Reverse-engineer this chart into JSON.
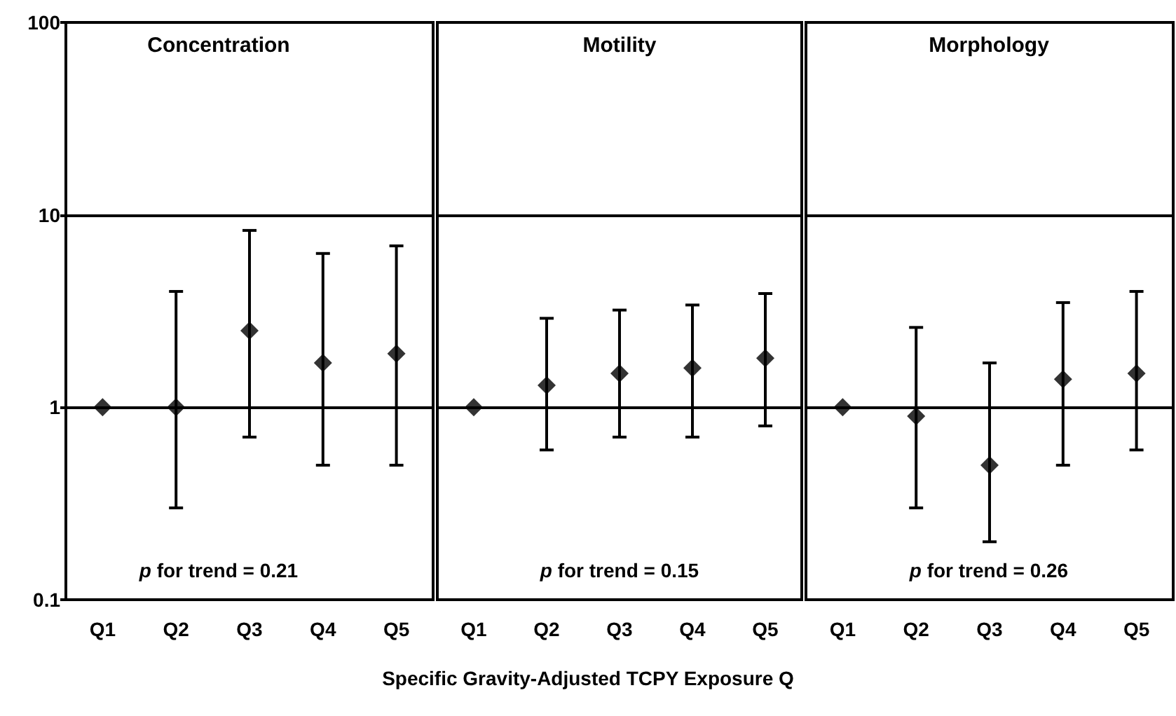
{
  "chart_data": [
    {
      "type": "scatter",
      "title": "Concentration",
      "categories": [
        "Q1",
        "Q2",
        "Q3",
        "Q4",
        "Q5"
      ],
      "log": true,
      "ylim": [
        0.1,
        100
      ],
      "yticks": [
        0.1,
        1,
        10,
        100
      ],
      "grid": "y",
      "marker": "diamond",
      "series": [
        {
          "color": "#000000",
          "values": [
            1,
            1,
            2.5,
            1.7,
            1.9
          ],
          "errors": [
            null,
            [
              0.3,
              4.0
            ],
            [
              0.7,
              8.3
            ],
            [
              0.5,
              6.3
            ],
            [
              0.5,
              6.9
            ]
          ]
        }
      ],
      "annotations": [
        "p for trend = 0.21"
      ]
    },
    {
      "type": "scatter",
      "title": "Motility",
      "xlabel": "Specific Gravity-Adjusted TCPY Exposure Q",
      "categories": [
        "Q1",
        "Q2",
        "Q3",
        "Q4",
        "Q5"
      ],
      "log": true,
      "ylim": [
        0.1,
        100
      ],
      "yticks": [
        0.1,
        1,
        10,
        100
      ],
      "grid": "y",
      "marker": "diamond",
      "tick_labels": "x",
      "series": [
        {
          "color": "#000000",
          "values": [
            1,
            1.3,
            1.5,
            1.6,
            1.8
          ],
          "errors": [
            null,
            [
              0.6,
              2.9
            ],
            [
              0.7,
              3.2
            ],
            [
              0.7,
              3.4
            ],
            [
              0.8,
              3.9
            ]
          ]
        }
      ],
      "annotations": [
        "p for trend = 0.15"
      ]
    },
    {
      "type": "scatter",
      "title": "Morphology",
      "categories": [
        "Q1",
        "Q2",
        "Q3",
        "Q4",
        "Q5"
      ],
      "log": true,
      "ylim": [
        0.1,
        100
      ],
      "yticks": [
        0.1,
        1,
        10,
        100
      ],
      "grid": "y",
      "marker": "diamond",
      "tick_labels": "x",
      "series": [
        {
          "color": "#000000",
          "values": [
            1,
            0.9,
            0.5,
            1.4,
            1.5
          ],
          "errors": [
            null,
            [
              0.3,
              2.6
            ],
            [
              0.2,
              1.7
            ],
            [
              0.5,
              3.5
            ],
            [
              0.6,
              4.0
            ]
          ]
        }
      ],
      "annotations": [
        "p for trend = 0.26"
      ]
    }
  ]
}
